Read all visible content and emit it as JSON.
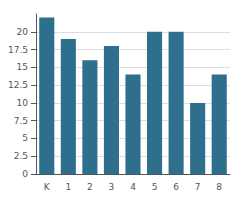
{
  "chart_data": {
    "type": "bar",
    "categories": [
      "K",
      "1",
      "2",
      "3",
      "4",
      "5",
      "6",
      "7",
      "8"
    ],
    "values": [
      22,
      19,
      16,
      18,
      14,
      20,
      20,
      10,
      14
    ],
    "color": "#2e6f8e",
    "ylim": [
      0,
      22.5
    ],
    "yticks": [
      0,
      2.5,
      5,
      7.5,
      10,
      12.5,
      15,
      17.5,
      20
    ],
    "grid": true
  }
}
